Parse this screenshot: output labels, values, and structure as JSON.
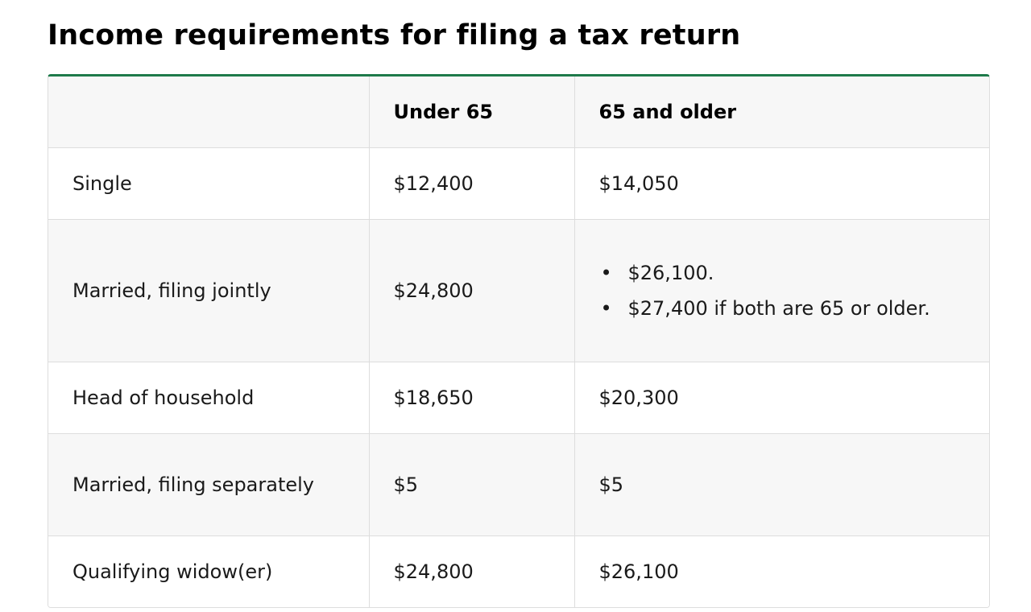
{
  "page": {
    "title": "Income requirements for filing a tax return"
  },
  "colors": {
    "accent_border": "#1e7a4a",
    "row_shade": "#f7f7f7",
    "grid_line": "#dddddd"
  },
  "table": {
    "headers": [
      "",
      "Under 65",
      "65 and older"
    ],
    "rows": [
      {
        "status": "Single",
        "under_65": "$12,400",
        "over_65": "$14,050"
      },
      {
        "status": "Married, filing jointly",
        "under_65": "$24,800",
        "over_65_list": [
          "$26,100.",
          "$27,400 if both are 65 or older."
        ]
      },
      {
        "status": "Head of household",
        "under_65": "$18,650",
        "over_65": "$20,300"
      },
      {
        "status": "Married, filing separately",
        "under_65": "$5",
        "over_65": "$5"
      },
      {
        "status": "Qualifying widow(er)",
        "under_65": "$24,800",
        "over_65": "$26,100"
      }
    ]
  }
}
